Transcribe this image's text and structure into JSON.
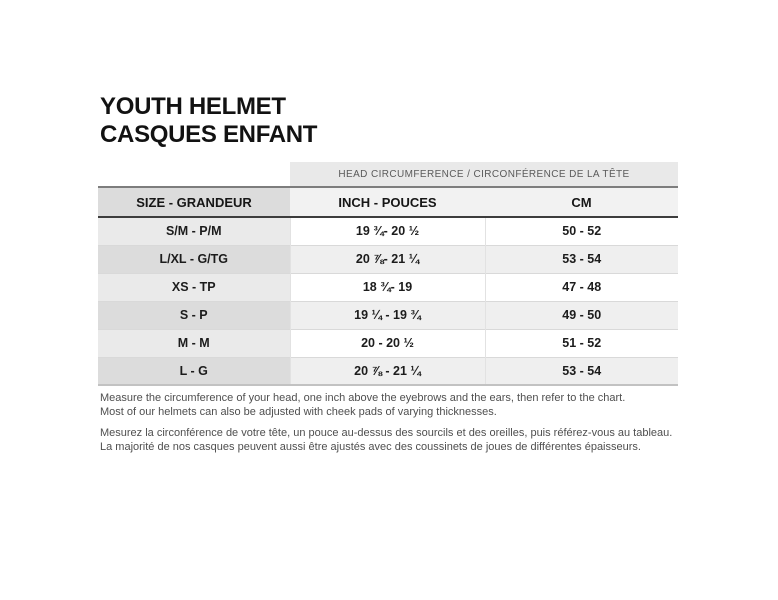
{
  "title": {
    "line1": "YOUTH HELMET",
    "line2": "CASQUES ENFANT"
  },
  "table": {
    "span_header": "HEAD CIRCUMFERENCE / CIRCONFÉRENCE DE LA TÊTE",
    "columns": [
      "SIZE - GRANDEUR",
      "INCH - POUCES",
      "CM"
    ],
    "rows": [
      {
        "size": "S/M - P/M",
        "inch": "19 ¾- 20 ½",
        "cm": "50 - 52"
      },
      {
        "size": "L/XL - G/TG",
        "inch": "20 ⅞- 21 ¼",
        "cm": "53 - 54"
      },
      {
        "size": "XS - TP",
        "inch": "18 ¾- 19",
        "cm": "47 - 48"
      },
      {
        "size": "S - P",
        "inch": "19 ¼ - 19 ¾",
        "cm": "49 - 50"
      },
      {
        "size": "M - M",
        "inch": "20 - 20 ½",
        "cm": "51 - 52"
      },
      {
        "size": "L - G",
        "inch": "20 ⅞ - 21 ¼",
        "cm": "53 - 54"
      }
    ]
  },
  "notes": {
    "en": [
      "Measure the circumference of your head, one inch above the eyebrows and the ears, then refer to the chart.",
      "Most of our helmets can also be adjusted with cheek pads of varying thicknesses."
    ],
    "fr": [
      "Mesurez la circonférence de votre tête, un pouce au-dessus des sourcils et des oreilles, puis référez-vous au tableau.",
      "La majorité de nos casques peuvent aussi être ajustés avec des coussinets de joues de différentes épaisseurs."
    ]
  },
  "colors": {
    "band_bg": "#e9e9e9",
    "header_col1_bg": "#dcdcdc",
    "header_col23_bg": "#f2f2f2",
    "row_odd_col1_bg": "#eaeaea",
    "row_odd_bg": "#ffffff",
    "row_even_col1_bg": "#dcdcdc",
    "row_even_bg": "#efefef",
    "header_border_top": "#7d7d7d",
    "header_border_bottom": "#3d3d3d",
    "note_text": "#4f4f4f"
  }
}
